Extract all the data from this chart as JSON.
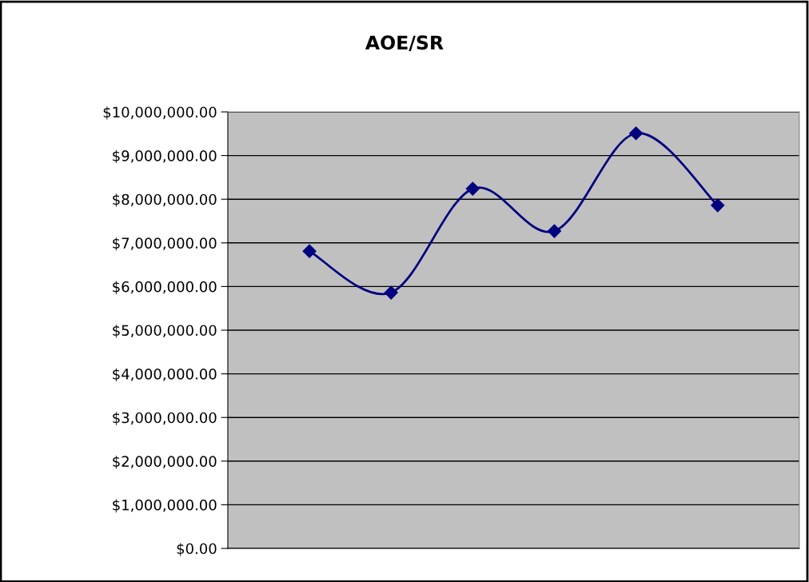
{
  "chart_data": {
    "type": "line",
    "title": "AOE/SR",
    "categories": [
      null,
      null,
      null,
      null,
      null,
      null
    ],
    "series": [
      {
        "color": "#000080",
        "values": [
          6810000,
          5860000,
          8240000,
          7270000,
          9510000,
          7860000
        ]
      }
    ],
    "ylim": [
      0,
      10000000
    ],
    "yticks": [
      {
        "value": 0,
        "label": "$0.00"
      },
      {
        "value": 1000000,
        "label": "$1,000,000.00"
      },
      {
        "value": 2000000,
        "label": "$2,000,000.00"
      },
      {
        "value": 3000000,
        "label": "$3,000,000.00"
      },
      {
        "value": 4000000,
        "label": "$4,000,000.00"
      },
      {
        "value": 5000000,
        "label": "$5,000,000.00"
      },
      {
        "value": 6000000,
        "label": "$6,000,000.00"
      },
      {
        "value": 7000000,
        "label": "$7,000,000.00"
      },
      {
        "value": 8000000,
        "label": "$8,000,000.00"
      },
      {
        "value": 9000000,
        "label": "$9,000,000.00"
      },
      {
        "value": 10000000,
        "label": "$10,000,000.00"
      }
    ],
    "grid": "y",
    "marker": "diamond",
    "line_style": "solid",
    "legend": false
  }
}
